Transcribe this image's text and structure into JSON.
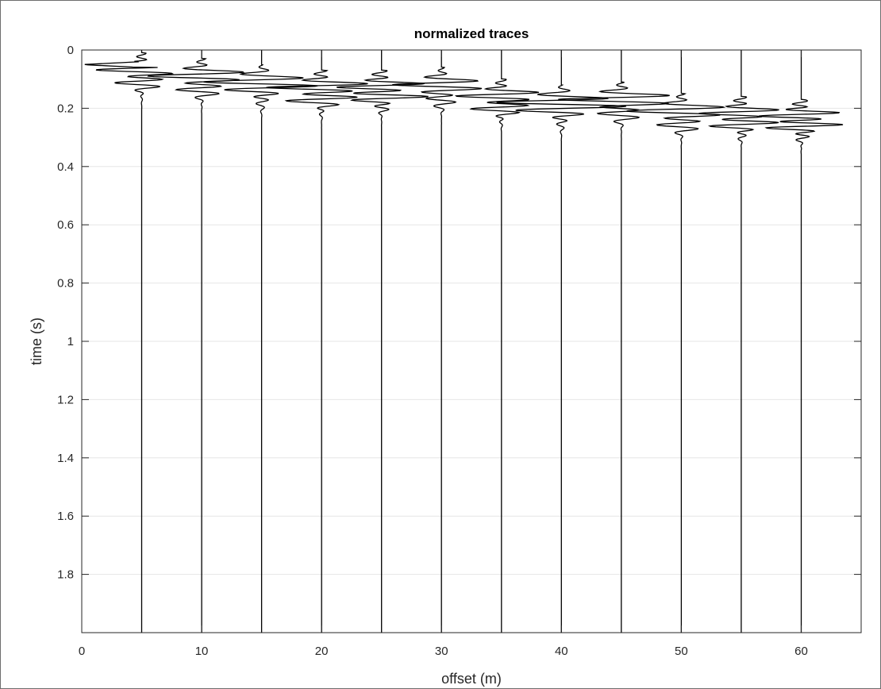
{
  "chart_data": {
    "type": "line",
    "title": "normalized traces",
    "xlabel": "offset (m)",
    "ylabel": "time (s)",
    "xlim": [
      0,
      65
    ],
    "ylim": [
      0,
      2
    ],
    "y_reversed": true,
    "grid": "y-major",
    "x_ticks": [
      "0",
      "10",
      "20",
      "30",
      "40",
      "50",
      "60"
    ],
    "y_ticks": [
      "0",
      "0.2",
      "0.4",
      "0.6",
      "0.8",
      "1",
      "1.2",
      "1.4",
      "1.6",
      "1.8"
    ],
    "trace_offsets": [
      5,
      10,
      15,
      20,
      25,
      30,
      35,
      40,
      45,
      50,
      55,
      60
    ],
    "first_arrival_times": [
      0.05,
      0.07,
      0.09,
      0.11,
      0.11,
      0.1,
      0.14,
      0.16,
      0.15,
      0.19,
      0.2,
      0.21
    ],
    "line_color": "#000000",
    "grid_color": "#e6e6e6"
  }
}
